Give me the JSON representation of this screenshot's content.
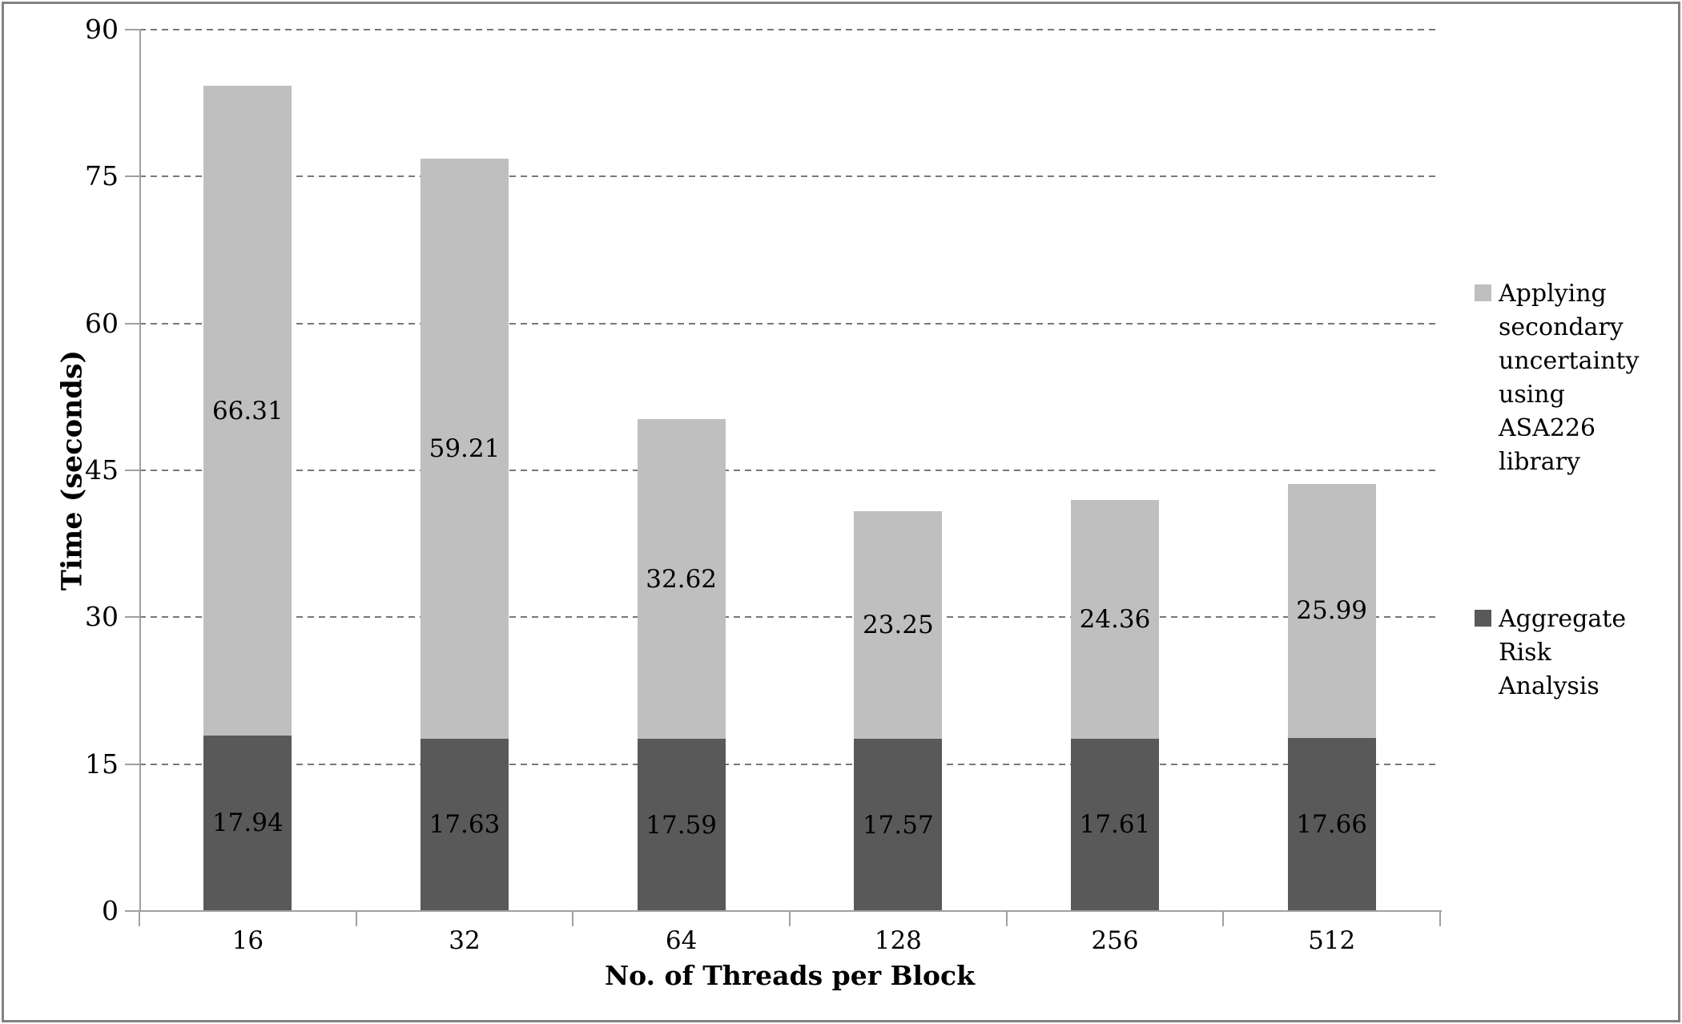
{
  "chart_data": {
    "type": "bar",
    "stacked": true,
    "title": "",
    "xlabel": "No. of Threads per Block",
    "ylabel": "Time (seconds)",
    "categories": [
      "16",
      "32",
      "64",
      "128",
      "256",
      "512"
    ],
    "series": [
      {
        "id": "aggregate-risk-analysis",
        "name": "Aggregate Risk Analysis",
        "color": "#595959",
        "values": [
          17.94,
          17.63,
          17.59,
          17.57,
          17.61,
          17.66
        ]
      },
      {
        "id": "secondary-uncertainty-asa226",
        "name": "Applying secondary uncertainty using ASA226 library",
        "color": "#bfbfbf",
        "values": [
          66.31,
          59.21,
          32.62,
          23.25,
          24.36,
          25.99
        ]
      }
    ],
    "data_labels": true,
    "ylim": [
      0,
      90
    ],
    "yticks": [
      0,
      15,
      30,
      45,
      60,
      75,
      90
    ],
    "grid": "horizontal-dashed",
    "legend_position": "right"
  },
  "legend": {
    "entries": [
      {
        "series_index": 1,
        "swatch_icon": "light-gray-square"
      },
      {
        "series_index": 0,
        "swatch_icon": "dark-gray-square"
      }
    ]
  },
  "colors": {
    "series_dark": "#595959",
    "series_light": "#bfbfbf",
    "gridline": "#787878",
    "axis": "#a0a0a0",
    "frame_border": "#828282",
    "background": "#ffffff",
    "text": "#000000"
  }
}
